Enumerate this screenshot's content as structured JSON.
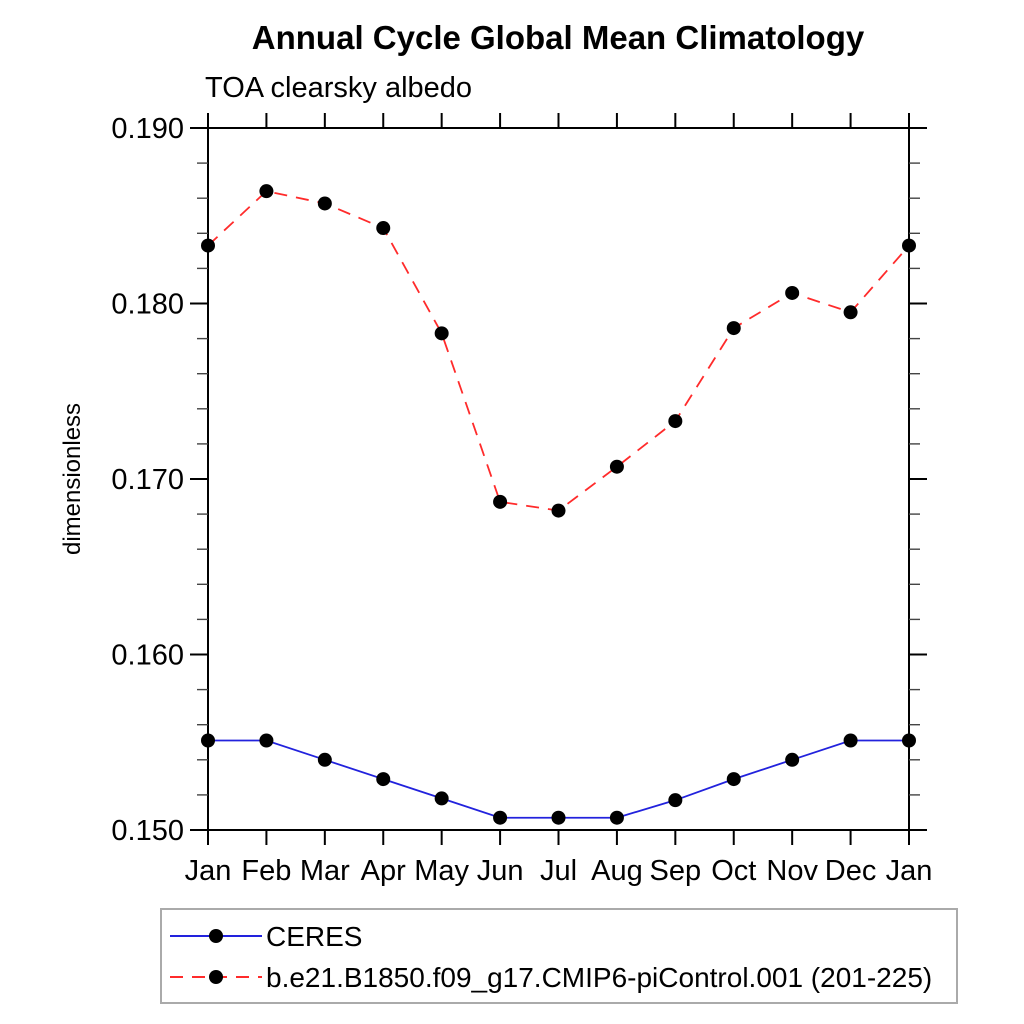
{
  "chart_data": {
    "type": "line",
    "title": "Annual Cycle Global Mean Climatology",
    "subtitle": "TOA clearsky albedo",
    "ylabel": "dimensionless",
    "xlabel": "",
    "categories": [
      "Jan",
      "Feb",
      "Mar",
      "Apr",
      "May",
      "Jun",
      "Jul",
      "Aug",
      "Sep",
      "Oct",
      "Nov",
      "Dec",
      "Jan"
    ],
    "ylim": [
      0.15,
      0.19
    ],
    "ytick_major": [
      0.15,
      0.16,
      0.17,
      0.18,
      0.19
    ],
    "ytick_minor_step": 0.002,
    "ytick_labels": [
      "0.150",
      "0.160",
      "0.170",
      "0.180",
      "0.190"
    ],
    "grid": "off",
    "legend_position": "bottom-left-box",
    "series": [
      {
        "name": "CERES",
        "color": "#2222dd",
        "line_style": "solid",
        "marker": "black-dot",
        "values": [
          0.1551,
          0.1551,
          0.154,
          0.1529,
          0.1518,
          0.1507,
          0.1507,
          0.1507,
          0.1517,
          0.1529,
          0.154,
          0.1551,
          0.1551
        ]
      },
      {
        "name": "b.e21.B1850.f09_g17.CMIP6-piControl.001 (201-225)",
        "color": "#ff2b2b",
        "line_style": "dashed",
        "marker": "black-dot",
        "values": [
          0.1833,
          0.1864,
          0.1857,
          0.1843,
          0.1783,
          0.1687,
          0.1682,
          0.1707,
          0.1733,
          0.1786,
          0.1806,
          0.1795,
          0.1833
        ]
      }
    ],
    "marker_color": "#000000",
    "axis_color": "#000000"
  }
}
